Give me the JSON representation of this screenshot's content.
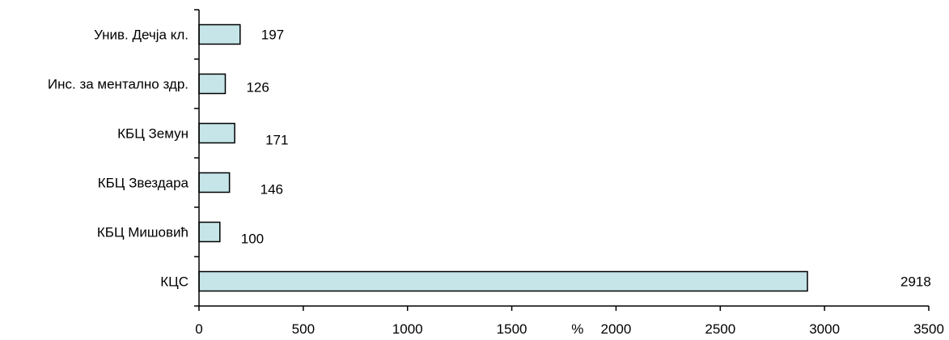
{
  "chart_data": {
    "type": "bar",
    "orientation": "horizontal",
    "categories": [
      "Унив. Дечја кл.",
      "Инс. за ментално здр.",
      "КБЦ Земун",
      "КБЦ Звездара",
      "КБЦ Мишовић",
      "КЦС"
    ],
    "values": [
      197,
      126,
      171,
      146,
      100,
      2918
    ],
    "value_labels": [
      "197",
      "126",
      "171",
      "146",
      "100",
      "2918"
    ],
    "xlim": [
      0,
      3500
    ],
    "x_ticks": [
      0,
      500,
      1000,
      1500,
      2000,
      2500,
      3000,
      3500
    ],
    "x_tick_labels": [
      "0",
      "500",
      "1000",
      "1500",
      "2000",
      "2500",
      "3000",
      "3500"
    ],
    "x_unit": "%",
    "title": "",
    "xlabel": "",
    "ylabel": "",
    "grid": false,
    "legend": "none",
    "bar_color": "#c5e5e8",
    "edge_color": "#000000"
  }
}
